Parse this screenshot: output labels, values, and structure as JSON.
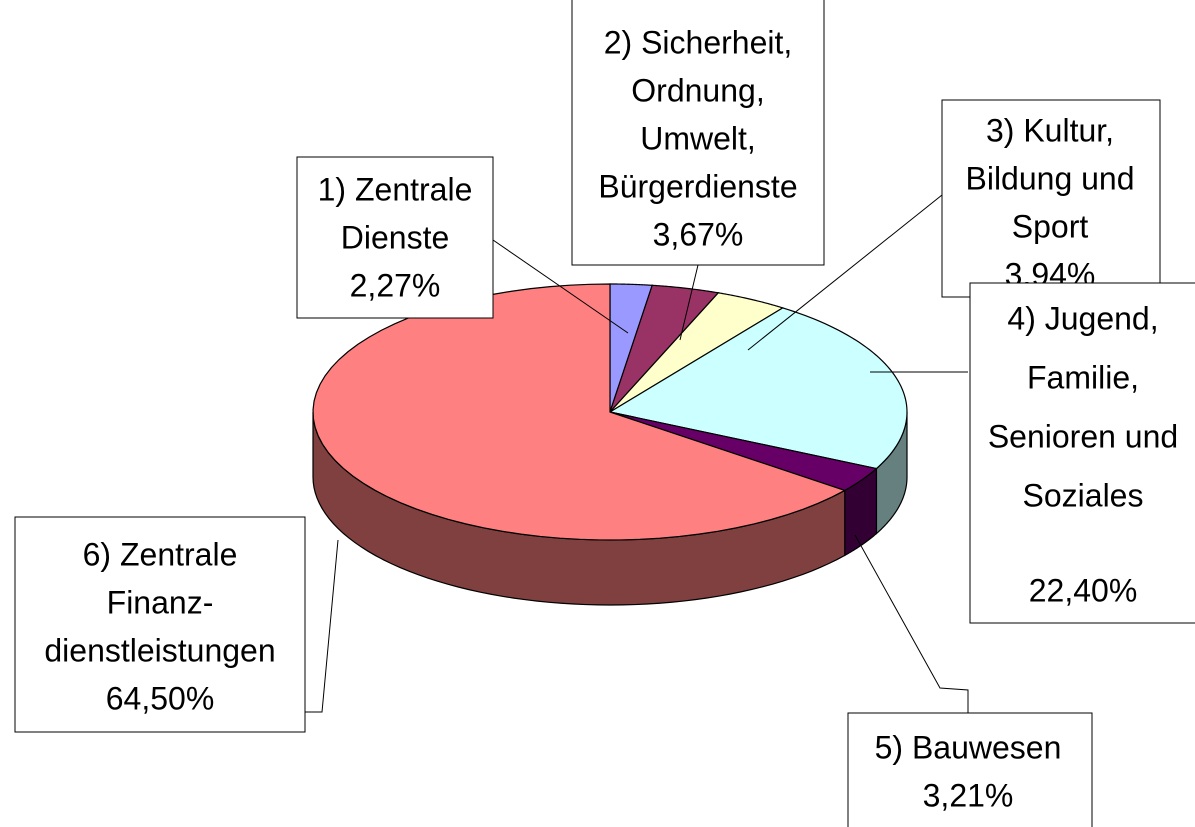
{
  "chart_data": {
    "type": "pie3d",
    "categories": [
      [
        "1) Zentrale",
        "Dienste"
      ],
      [
        "2) Sicherheit,",
        "Ordnung,",
        "Umwelt,",
        "Bürgerdienste"
      ],
      [
        "3) Kultur,",
        "Bildung und",
        "Sport"
      ],
      [
        "4) Jugend,",
        "Familie,",
        "Senioren und",
        "Soziales"
      ],
      [
        "5) Bauwesen"
      ],
      [
        "6) Zentrale",
        "Finanz-",
        "dienstleistungen"
      ]
    ],
    "values": [
      2.27,
      3.67,
      3.94,
      22.4,
      3.21,
      64.5
    ],
    "value_labels": [
      "2,27%",
      "3,67%",
      "3,94%",
      "22,40%",
      "3,21%",
      "64,50%"
    ],
    "colors": [
      "#9999ff",
      "#993366",
      "#ffffcc",
      "#ccffff",
      "#660066",
      "#ff8080"
    ]
  }
}
